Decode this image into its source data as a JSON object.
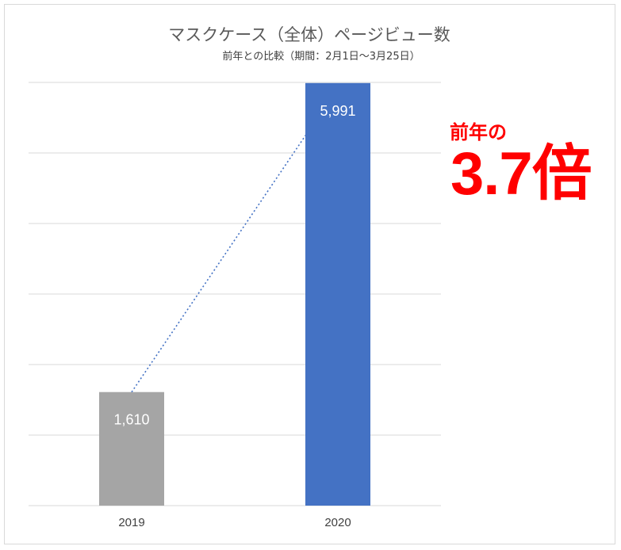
{
  "chart_data": {
    "type": "bar",
    "title": "マスクケース（全体）ページビュー数",
    "subtitle": "前年との比較（期間：2月1日～3月25日）",
    "categories": [
      "2019",
      "2020"
    ],
    "values": [
      1610,
      5991
    ],
    "value_labels": [
      "1,610",
      "5,991"
    ],
    "bar_colors": [
      "#a5a5a5",
      "#4472c4"
    ],
    "ylim": [
      0,
      6000
    ],
    "grid": true,
    "connector": "dotted-line"
  },
  "callout": {
    "line1": "前年の",
    "line2": "3.7倍",
    "color": "#ff0000"
  }
}
